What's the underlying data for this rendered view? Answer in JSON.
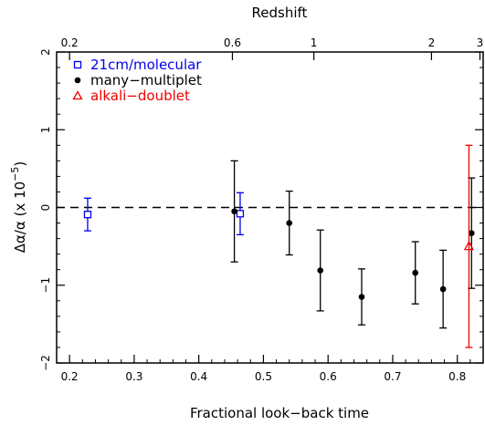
{
  "chart_data": {
    "type": "scatter",
    "title": "",
    "xlabel": "Fractional look−back time",
    "ylabel_parts": {
      "a": "Δα/α  (x 10",
      "exp": "−5",
      "b": ")"
    },
    "top_axis_label": "Redshift",
    "xlim": [
      0.18,
      0.84
    ],
    "ylim": [
      -2,
      2
    ],
    "x_ticks": [
      0.2,
      0.3,
      0.4,
      0.5,
      0.6,
      0.7,
      0.8
    ],
    "x_tick_labels": [
      "0.2",
      "0.3",
      "0.4",
      "0.5",
      "0.6",
      "0.7",
      "0.8"
    ],
    "y_ticks": [
      -2,
      -1,
      0,
      1,
      2
    ],
    "y_tick_labels": [
      "−2",
      "−1",
      "0",
      "1",
      "2"
    ],
    "top_ticks": [
      {
        "label": "0.2",
        "x": 0.2
      },
      {
        "label": "0.6",
        "x": 0.452
      },
      {
        "label": "1",
        "x": 0.578
      },
      {
        "label": "2",
        "x": 0.76
      },
      {
        "label": "3",
        "x": 0.835
      }
    ],
    "reference_line": {
      "y": 0,
      "style": "dashed"
    },
    "legend_position": "top-left",
    "series": [
      {
        "name": "21cm/molecular",
        "marker": "square-open",
        "color": "#0000ee",
        "points": [
          {
            "x": 0.228,
            "y": -0.09,
            "err": 0.21
          },
          {
            "x": 0.464,
            "y": -0.08,
            "err": 0.27
          }
        ]
      },
      {
        "name": "many−multiplet",
        "marker": "circle-filled",
        "color": "#000000",
        "points": [
          {
            "x": 0.455,
            "y": -0.05,
            "err": 0.65
          },
          {
            "x": 0.54,
            "y": -0.2,
            "err": 0.41
          },
          {
            "x": 0.588,
            "y": -0.81,
            "err": 0.52
          },
          {
            "x": 0.652,
            "y": -1.15,
            "err": 0.36
          },
          {
            "x": 0.735,
            "y": -0.84,
            "err": 0.4
          },
          {
            "x": 0.778,
            "y": -1.05,
            "err": 0.5
          },
          {
            "x": 0.822,
            "y": -0.33,
            "err": 0.71
          }
        ]
      },
      {
        "name": "alkali−doublet",
        "marker": "triangle-open",
        "color": "#ee0000",
        "points": [
          {
            "x": 0.818,
            "y": -0.5,
            "err": 1.3
          }
        ]
      }
    ]
  }
}
